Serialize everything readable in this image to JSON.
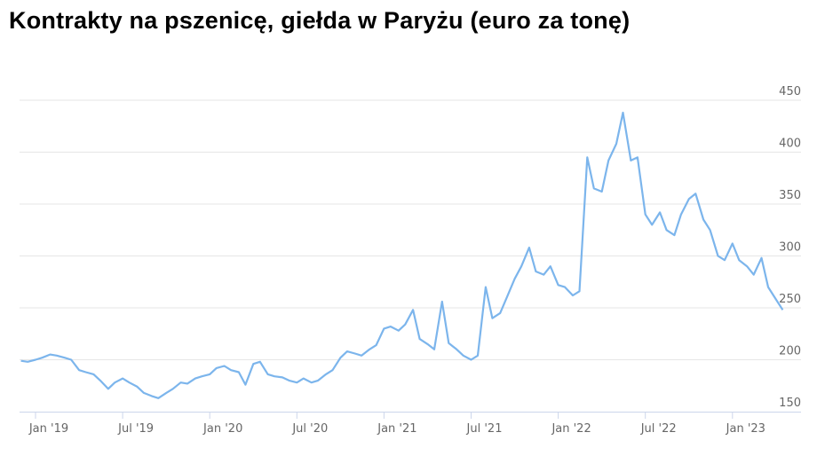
{
  "chart_data": {
    "type": "line",
    "title": "Kontrakty na pszenicę, giełda w Paryżu (euro za tonę)",
    "xlabel": "",
    "ylabel": "",
    "ylim": [
      150,
      450
    ],
    "y_ticks": [
      150,
      200,
      250,
      300,
      350,
      400,
      450
    ],
    "x_ticks": [
      "Jan '19",
      "Jul '19",
      "Jan '20",
      "Jul '20",
      "Jan '21",
      "Jul '21",
      "Jan '22",
      "Jul '22",
      "Jan '23"
    ],
    "grid": true,
    "y_axis_position": "right",
    "line_color": "#7cb5ec",
    "series": [
      {
        "points": [
          [
            "2018-12-01",
            199
          ],
          [
            "2018-12-15",
            198
          ],
          [
            "2019-01-01",
            200
          ],
          [
            "2019-01-15",
            202
          ],
          [
            "2019-02-01",
            205
          ],
          [
            "2019-02-15",
            204
          ],
          [
            "2019-03-01",
            202
          ],
          [
            "2019-03-15",
            200
          ],
          [
            "2019-04-01",
            190
          ],
          [
            "2019-04-15",
            188
          ],
          [
            "2019-05-01",
            186
          ],
          [
            "2019-05-15",
            180
          ],
          [
            "2019-06-01",
            172
          ],
          [
            "2019-06-15",
            178
          ],
          [
            "2019-07-01",
            182
          ],
          [
            "2019-07-15",
            178
          ],
          [
            "2019-08-01",
            174
          ],
          [
            "2019-08-15",
            168
          ],
          [
            "2019-09-01",
            165
          ],
          [
            "2019-09-15",
            163
          ],
          [
            "2019-10-01",
            168
          ],
          [
            "2019-10-15",
            172
          ],
          [
            "2019-11-01",
            178
          ],
          [
            "2019-11-15",
            177
          ],
          [
            "2019-12-01",
            182
          ],
          [
            "2019-12-15",
            184
          ],
          [
            "2020-01-01",
            186
          ],
          [
            "2020-01-15",
            192
          ],
          [
            "2020-02-01",
            194
          ],
          [
            "2020-02-15",
            190
          ],
          [
            "2020-03-01",
            188
          ],
          [
            "2020-03-15",
            176
          ],
          [
            "2020-04-01",
            196
          ],
          [
            "2020-04-15",
            198
          ],
          [
            "2020-05-01",
            186
          ],
          [
            "2020-05-15",
            184
          ],
          [
            "2020-06-01",
            183
          ],
          [
            "2020-06-15",
            180
          ],
          [
            "2020-07-01",
            178
          ],
          [
            "2020-07-15",
            182
          ],
          [
            "2020-08-01",
            178
          ],
          [
            "2020-08-15",
            180
          ],
          [
            "2020-09-01",
            186
          ],
          [
            "2020-09-15",
            190
          ],
          [
            "2020-10-01",
            202
          ],
          [
            "2020-10-15",
            208
          ],
          [
            "2020-11-01",
            206
          ],
          [
            "2020-11-15",
            204
          ],
          [
            "2020-12-01",
            210
          ],
          [
            "2020-12-15",
            214
          ],
          [
            "2021-01-01",
            230
          ],
          [
            "2021-01-15",
            232
          ],
          [
            "2021-02-01",
            228
          ],
          [
            "2021-02-15",
            234
          ],
          [
            "2021-03-01",
            248
          ],
          [
            "2021-03-15",
            220
          ],
          [
            "2021-04-01",
            215
          ],
          [
            "2021-04-15",
            210
          ],
          [
            "2021-05-01",
            256
          ],
          [
            "2021-05-15",
            216
          ],
          [
            "2021-06-01",
            210
          ],
          [
            "2021-06-15",
            204
          ],
          [
            "2021-07-01",
            200
          ],
          [
            "2021-07-15",
            204
          ],
          [
            "2021-08-01",
            270
          ],
          [
            "2021-08-15",
            240
          ],
          [
            "2021-09-01",
            245
          ],
          [
            "2021-09-15",
            260
          ],
          [
            "2021-10-01",
            278
          ],
          [
            "2021-10-15",
            290
          ],
          [
            "2021-11-01",
            308
          ],
          [
            "2021-11-15",
            285
          ],
          [
            "2021-12-01",
            282
          ],
          [
            "2021-12-15",
            290
          ],
          [
            "2022-01-01",
            272
          ],
          [
            "2022-01-15",
            270
          ],
          [
            "2022-02-01",
            262
          ],
          [
            "2022-02-15",
            266
          ],
          [
            "2022-03-01",
            395
          ],
          [
            "2022-03-15",
            365
          ],
          [
            "2022-04-01",
            362
          ],
          [
            "2022-04-15",
            392
          ],
          [
            "2022-05-01",
            408
          ],
          [
            "2022-05-15",
            438
          ],
          [
            "2022-06-01",
            392
          ],
          [
            "2022-06-15",
            395
          ],
          [
            "2022-07-01",
            340
          ],
          [
            "2022-07-15",
            330
          ],
          [
            "2022-08-01",
            342
          ],
          [
            "2022-08-15",
            325
          ],
          [
            "2022-09-01",
            320
          ],
          [
            "2022-09-15",
            340
          ],
          [
            "2022-10-01",
            355
          ],
          [
            "2022-10-15",
            360
          ],
          [
            "2022-11-01",
            335
          ],
          [
            "2022-11-15",
            325
          ],
          [
            "2022-12-01",
            300
          ],
          [
            "2022-12-15",
            296
          ],
          [
            "2023-01-01",
            312
          ],
          [
            "2023-01-15",
            296
          ],
          [
            "2023-02-01",
            290
          ],
          [
            "2023-02-15",
            282
          ],
          [
            "2023-03-01",
            298
          ],
          [
            "2023-03-15",
            270
          ],
          [
            "2023-04-01",
            258
          ],
          [
            "2023-04-15",
            248
          ]
        ]
      }
    ]
  }
}
